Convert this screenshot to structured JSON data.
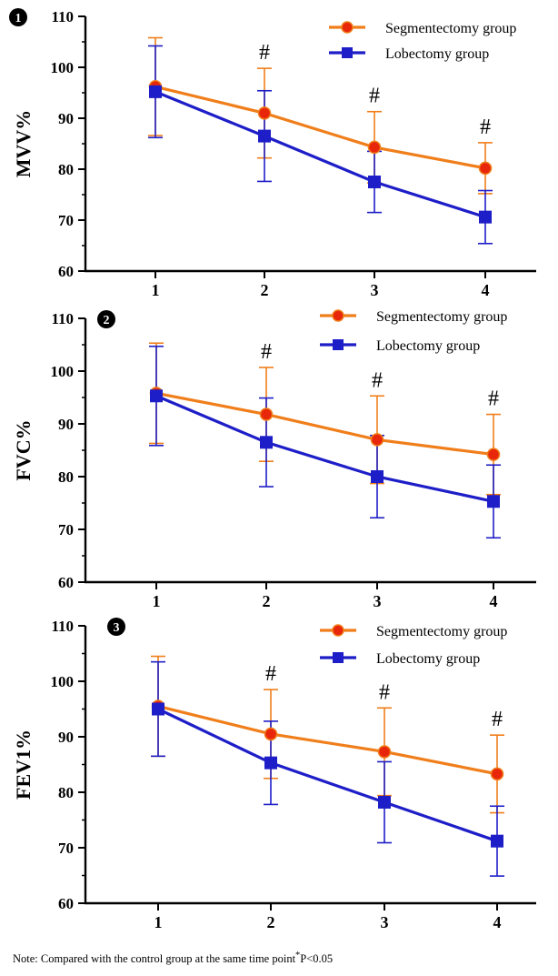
{
  "colors": {
    "segmentectomy": "#F07E1A",
    "segmentectomy_marker": "#E8270A",
    "lobectomy": "#1E1EC8",
    "axis": "#000000",
    "badge": "#000000"
  },
  "note": "Note: Compared with the control group at the same time point",
  "note_p": "P<0.05",
  "chart_data": [
    {
      "type": "line",
      "badge": "1",
      "ylabel": "MVV%",
      "categories": [
        "1",
        "2",
        "3",
        "4"
      ],
      "ylim": [
        60,
        110
      ],
      "yticks": [
        "60",
        "70",
        "80",
        "90",
        "100",
        "110"
      ],
      "legend": [
        "Segmentectomy group",
        "Lobectomy group"
      ],
      "legend_position": "top-right",
      "annotations": [
        "",
        "#",
        "#",
        "#"
      ],
      "series": [
        {
          "name": "Segmentectomy group",
          "values": [
            96.2,
            91.0,
            84.3,
            80.2
          ],
          "err": [
            9.6,
            8.8,
            7.0,
            5.0
          ],
          "marker": "circle"
        },
        {
          "name": "Lobectomy group",
          "values": [
            95.2,
            86.5,
            77.5,
            70.6
          ],
          "err": [
            9.0,
            8.9,
            6.0,
            5.2
          ],
          "marker": "square"
        }
      ]
    },
    {
      "type": "line",
      "badge": "2",
      "ylabel": "FVC%",
      "categories": [
        "1",
        "2",
        "3",
        "4"
      ],
      "ylim": [
        60,
        110
      ],
      "yticks": [
        "60",
        "70",
        "80",
        "90",
        "100",
        "110"
      ],
      "legend": [
        "Segmentectomy group",
        "Lobectomy group"
      ],
      "legend_position": "top-right",
      "annotations": [
        "",
        "#",
        "#",
        "#"
      ],
      "series": [
        {
          "name": "Segmentectomy group",
          "values": [
            95.8,
            91.8,
            87.0,
            84.2
          ],
          "err": [
            9.5,
            8.9,
            8.3,
            7.6
          ],
          "marker": "circle"
        },
        {
          "name": "Lobectomy group",
          "values": [
            95.3,
            86.5,
            80.0,
            75.3
          ],
          "err": [
            9.4,
            8.4,
            7.8,
            6.9
          ],
          "marker": "square"
        }
      ]
    },
    {
      "type": "line",
      "badge": "3",
      "ylabel": "FEV1%",
      "categories": [
        "1",
        "2",
        "3",
        "4"
      ],
      "ylim": [
        60,
        110
      ],
      "yticks": [
        "60",
        "70",
        "80",
        "90",
        "100",
        "110"
      ],
      "legend": [
        "Segmentectomy group",
        "Lobectomy group"
      ],
      "legend_position": "top-right",
      "annotations": [
        "",
        "#",
        "#",
        "#"
      ],
      "series": [
        {
          "name": "Segmentectomy group",
          "values": [
            95.5,
            90.5,
            87.3,
            83.3
          ],
          "err": [
            9.0,
            8.0,
            7.9,
            7.0
          ],
          "marker": "circle"
        },
        {
          "name": "Lobectomy group",
          "values": [
            95.0,
            85.3,
            78.2,
            71.2
          ],
          "err": [
            8.5,
            7.5,
            7.3,
            6.3
          ],
          "marker": "square"
        }
      ]
    }
  ]
}
